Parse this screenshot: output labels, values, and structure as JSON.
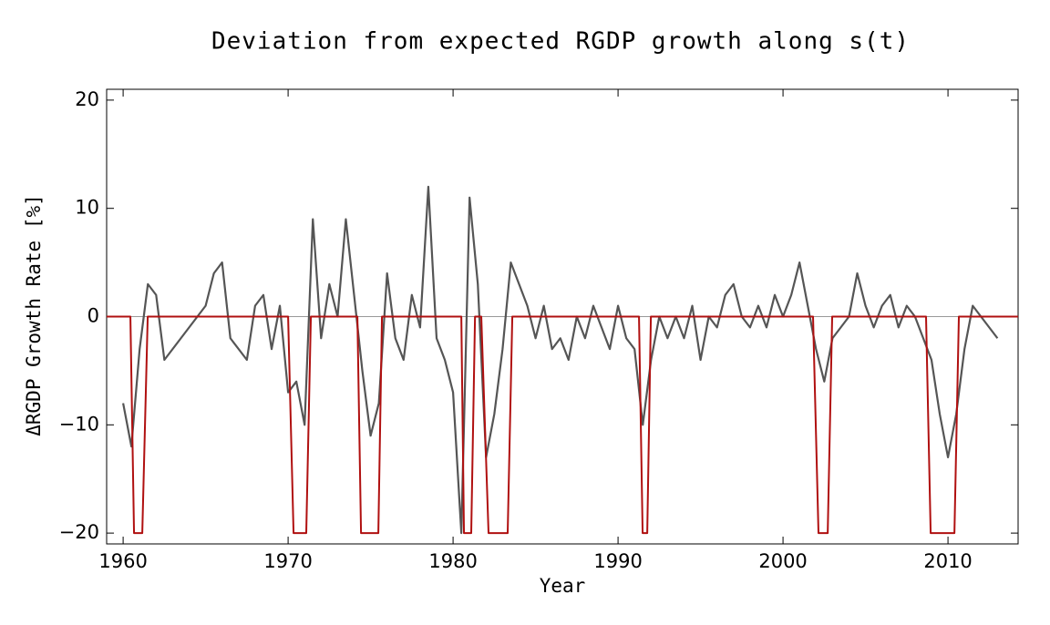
{
  "chart_data": {
    "type": "line",
    "title": "Deviation from expected RGDP growth along s(t)",
    "x_label": "Year",
    "y_label": "ΔRGDP Growth Rate [%]",
    "xlim": [
      1959,
      2014.25
    ],
    "ylim": [
      -21,
      21
    ],
    "xticks": [
      1960,
      1970,
      1980,
      1990,
      2000,
      2010
    ],
    "yticks": [
      {
        "value": -20,
        "label": "−20"
      },
      {
        "value": -10,
        "label": "−10"
      },
      0,
      10,
      20
    ],
    "zero_line": true,
    "series": [
      {
        "color": "#555555",
        "x": [
          1960,
          1960.5,
          1961,
          1961.5,
          1962,
          1962.5,
          1963,
          1963.5,
          1964,
          1964.5,
          1965,
          1965.5,
          1966,
          1966.5,
          1967,
          1967.5,
          1968,
          1968.5,
          1969,
          1969.5,
          1970,
          1970.5,
          1971,
          1971.5,
          1972,
          1972.5,
          1973,
          1973.5,
          1974,
          1974.5,
          1975,
          1975.5,
          1976,
          1976.5,
          1977,
          1977.5,
          1978,
          1978.5,
          1979,
          1979.5,
          1980,
          1980.5,
          1981,
          1981.5,
          1982,
          1982.5,
          1983,
          1983.5,
          1984,
          1984.5,
          1985,
          1985.5,
          1986,
          1986.5,
          1987,
          1987.5,
          1988,
          1988.5,
          1989,
          1989.5,
          1990,
          1990.5,
          1991,
          1991.5,
          1992,
          1992.5,
          1993,
          1993.5,
          1994,
          1994.5,
          1995,
          1995.5,
          1996,
          1996.5,
          1997,
          1997.5,
          1998,
          1998.5,
          1999,
          1999.5,
          2000,
          2000.5,
          2001,
          2001.5,
          2002,
          2002.5,
          2003,
          2003.5,
          2004,
          2004.5,
          2005,
          2005.5,
          2006,
          2006.5,
          2007,
          2007.5,
          2008,
          2008.5,
          2009,
          2009.5,
          2010,
          2010.5,
          2011,
          2011.5,
          2012,
          2012.5,
          2013
        ],
        "values": [
          -8,
          -12,
          -3,
          3,
          2,
          -4,
          -3,
          -2,
          -1,
          0,
          1,
          4,
          5,
          -2,
          -3,
          -4,
          1,
          2,
          -3,
          1,
          -7,
          -6,
          -10,
          9,
          -2,
          3,
          0,
          9,
          2,
          -5,
          -11,
          -8,
          4,
          -2,
          -4,
          2,
          -1,
          12,
          -2,
          -4,
          -7,
          -20,
          11,
          3,
          -13,
          -9,
          -3,
          5,
          3,
          1,
          -2,
          1,
          -3,
          -2,
          -4,
          0,
          -2,
          1,
          -1,
          -3,
          1,
          -2,
          -3,
          -10,
          -4,
          0,
          -2,
          0,
          -2,
          1,
          -4,
          0,
          -1,
          2,
          3,
          0,
          -1,
          1,
          -1,
          2,
          0,
          2,
          5,
          1,
          -3,
          -6,
          -2,
          -1,
          0,
          4,
          1,
          -1,
          1,
          2,
          -1,
          1,
          0,
          -2,
          -4,
          -9,
          -13,
          -9,
          -3,
          1,
          0,
          -1,
          -2
        ]
      },
      {
        "color": "#b01010",
        "x": [
          1959,
          1960.44,
          1960.66,
          1961.16,
          1961.49,
          1970,
          1970.33,
          1971.1,
          1971.38,
          1974.2,
          1974.42,
          1975.47,
          1975.69,
          1980.5,
          1980.66,
          1981.1,
          1981.33,
          1981.71,
          1982.15,
          1983.31,
          1983.59,
          1991.27,
          1991.49,
          1991.77,
          1991.99,
          2001.82,
          2002.15,
          2002.71,
          2002.98,
          2008.67,
          2008.95,
          2010.39,
          2010.66,
          2014.25
        ],
        "values": [
          0,
          0,
          -20,
          -20,
          0,
          0,
          -20,
          -20,
          0,
          0,
          -20,
          -20,
          0,
          0,
          -20,
          -20,
          0,
          0,
          -20,
          -20,
          0,
          0,
          -20,
          -20,
          0,
          0,
          -20,
          -20,
          0,
          0,
          -20,
          -20,
          0,
          0
        ]
      }
    ]
  }
}
